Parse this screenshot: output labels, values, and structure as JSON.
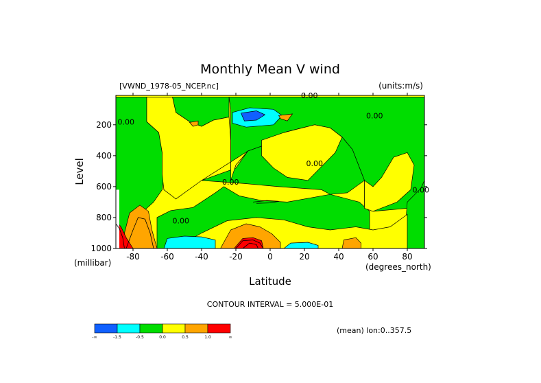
{
  "chart_data": {
    "type": "heatmap",
    "title": "Monthly Mean V wind",
    "dataset": "[VWND_1978-05_NCEP.nc]",
    "units": "(units:m/s)",
    "xlabel": "Latitude",
    "xunits": "(degrees_north)",
    "ylabel": "Level",
    "yunits": "(millibar)",
    "xlim": [
      -90,
      90
    ],
    "ylim": [
      1000,
      10
    ],
    "xticks": [
      "-80",
      "-60",
      "-40",
      "-20",
      "0",
      "20",
      "40",
      "60",
      "80"
    ],
    "xtick_values": [
      -80,
      -60,
      -40,
      -20,
      0,
      20,
      40,
      60,
      80
    ],
    "yticks": [
      "200",
      "400",
      "600",
      "800",
      "1000"
    ],
    "ytick_values": [
      200,
      400,
      600,
      800,
      1000
    ],
    "contour_interval": "CONTOUR INTERVAL = 5.000E-01",
    "contour_label": "0.00",
    "footer": "(mean) lon:0..357.5",
    "colorbar": {
      "colors": [
        "#1060ff",
        "#00ffff",
        "#00dd00",
        "#ffff00",
        "#ffa500",
        "#ff0000"
      ],
      "labels": [
        "-∞",
        "-1.5",
        "-0.5",
        "0.0",
        "0.5",
        "1.0",
        "∞"
      ]
    },
    "background_level": 0.25,
    "regions": [
      {
        "name": "green-left-upper",
        "value": -0.25,
        "pts": [
          [
            -90,
            950
          ],
          [
            -90,
            20
          ],
          [
            -72,
            20
          ],
          [
            -72,
            180
          ],
          [
            -65,
            250
          ],
          [
            -63,
            380
          ],
          [
            -62,
            520
          ],
          [
            -63,
            620
          ],
          [
            -68,
            700
          ],
          [
            -74,
            760
          ],
          [
            -79,
            820
          ],
          [
            -84,
            900
          ]
        ]
      },
      {
        "name": "green-north-top",
        "value": -0.25,
        "pts": [
          [
            -24,
            20
          ],
          [
            90,
            20
          ],
          [
            90,
            730
          ],
          [
            60,
            760
          ],
          [
            55,
            740
          ],
          [
            55,
            560
          ],
          [
            48,
            360
          ],
          [
            42,
            280
          ],
          [
            35,
            220
          ],
          [
            26,
            200
          ],
          [
            15,
            230
          ],
          [
            8,
            250
          ],
          [
            2,
            310
          ],
          [
            -13,
            370
          ],
          [
            -20,
            460
          ],
          [
            -23,
            560
          ],
          [
            -23,
            300
          ],
          [
            -23,
            100
          ]
        ]
      },
      {
        "name": "green-south-top",
        "value": -0.25,
        "pts": [
          [
            -57,
            20
          ],
          [
            -24,
            20
          ],
          [
            -24,
            150
          ],
          [
            -33,
            170
          ],
          [
            -40,
            210
          ],
          [
            -47,
            180
          ],
          [
            -55,
            120
          ]
        ]
      },
      {
        "name": "green-south-low",
        "value": -0.25,
        "pts": [
          [
            -66,
            1000
          ],
          [
            -66,
            800
          ],
          [
            -58,
            755
          ],
          [
            -45,
            735
          ],
          [
            -32,
            640
          ],
          [
            -27,
            600
          ],
          [
            -18,
            660
          ],
          [
            -5,
            690
          ],
          [
            10,
            700
          ],
          [
            35,
            650
          ],
          [
            52,
            700
          ],
          [
            58,
            760
          ],
          [
            58,
            900
          ],
          [
            52,
            1000
          ]
        ]
      },
      {
        "name": "green-mid-lat-b",
        "value": -0.25,
        "pts": [
          [
            -40,
            560
          ],
          [
            -20,
            480
          ],
          [
            -13,
            370
          ],
          [
            2,
            310
          ],
          [
            8,
            250
          ],
          [
            15,
            230
          ],
          [
            26,
            200
          ],
          [
            35,
            220
          ],
          [
            42,
            280
          ],
          [
            48,
            360
          ],
          [
            55,
            560
          ],
          [
            50,
            600
          ],
          [
            45,
            640
          ],
          [
            35,
            650
          ],
          [
            30,
            620
          ],
          [
            5,
            600
          ],
          [
            -15,
            580
          ]
        ]
      },
      {
        "name": "green-strip-90",
        "value": -0.25,
        "pts": [
          [
            78,
            1000
          ],
          [
            80,
            700
          ],
          [
            88,
            610
          ],
          [
            90,
            560
          ],
          [
            90,
            1000
          ]
        ]
      },
      {
        "name": "yellow-mid",
        "value": 0.25,
        "pts": [
          [
            -55,
            120
          ],
          [
            -47,
            180
          ],
          [
            -40,
            210
          ],
          [
            -33,
            170
          ],
          [
            -24,
            150
          ],
          [
            -23,
            300
          ],
          [
            -23,
            560
          ],
          [
            -20,
            460
          ],
          [
            -13,
            370
          ],
          [
            -40,
            560
          ],
          [
            -55,
            680
          ],
          [
            -62,
            620
          ],
          [
            -63,
            520
          ],
          [
            -63,
            380
          ],
          [
            -65,
            250
          ],
          [
            -72,
            180
          ],
          [
            -72,
            20
          ],
          [
            -57,
            20
          ]
        ]
      },
      {
        "name": "yellow-north",
        "value": 0.25,
        "pts": [
          [
            -5,
            300
          ],
          [
            8,
            250
          ],
          [
            15,
            230
          ],
          [
            26,
            200
          ],
          [
            35,
            220
          ],
          [
            42,
            280
          ],
          [
            38,
            380
          ],
          [
            30,
            470
          ],
          [
            22,
            560
          ],
          [
            10,
            540
          ],
          [
            2,
            480
          ],
          [
            -5,
            400
          ]
        ]
      },
      {
        "name": "yellow-low",
        "value": 0.25,
        "pts": [
          [
            -56,
            1000
          ],
          [
            -40,
            900
          ],
          [
            -25,
            820
          ],
          [
            -8,
            800
          ],
          [
            8,
            815
          ],
          [
            22,
            860
          ],
          [
            35,
            880
          ],
          [
            50,
            860
          ],
          [
            60,
            880
          ],
          [
            70,
            860
          ],
          [
            80,
            780
          ],
          [
            80,
            1000
          ]
        ]
      },
      {
        "name": "yellow-ne",
        "value": 0.25,
        "pts": [
          [
            55,
            560
          ],
          [
            60,
            600
          ],
          [
            65,
            540
          ],
          [
            72,
            410
          ],
          [
            80,
            380
          ],
          [
            84,
            460
          ],
          [
            82,
            620
          ],
          [
            74,
            700
          ],
          [
            60,
            760
          ],
          [
            55,
            740
          ]
        ]
      },
      {
        "name": "cyan-upper",
        "value": -1.0,
        "pts": [
          [
            -22,
            120
          ],
          [
            -12,
            90
          ],
          [
            2,
            100
          ],
          [
            7,
            140
          ],
          [
            2,
            200
          ],
          [
            -14,
            215
          ],
          [
            -22,
            190
          ]
        ]
      },
      {
        "name": "blue-upper",
        "value": -2.0,
        "pts": [
          [
            -17,
            125
          ],
          [
            -8,
            110
          ],
          [
            -3,
            135
          ],
          [
            -8,
            170
          ],
          [
            -15,
            175
          ]
        ]
      },
      {
        "name": "cyan-south",
        "value": -1.0,
        "pts": [
          [
            -62,
            1000
          ],
          [
            -60,
            935
          ],
          [
            -50,
            920
          ],
          [
            -40,
            925
          ],
          [
            -32,
            945
          ],
          [
            -32,
            1000
          ]
        ]
      },
      {
        "name": "cyan-north",
        "value": -1.0,
        "pts": [
          [
            8,
            1000
          ],
          [
            12,
            965
          ],
          [
            22,
            960
          ],
          [
            28,
            980
          ],
          [
            28,
            1000
          ]
        ]
      },
      {
        "name": "orange-upper",
        "value": 0.75,
        "pts": [
          [
            5,
            140
          ],
          [
            13,
            130
          ],
          [
            10,
            175
          ],
          [
            6,
            160
          ]
        ]
      },
      {
        "name": "orange-small-2",
        "value": 0.75,
        "pts": [
          [
            -47,
            185
          ],
          [
            -42,
            175
          ],
          [
            -42,
            200
          ],
          [
            -45,
            210
          ]
        ]
      },
      {
        "name": "orange-bump",
        "value": 0.75,
        "pts": [
          [
            -29,
            1000
          ],
          [
            -23,
            880
          ],
          [
            -14,
            840
          ],
          [
            -6,
            860
          ],
          [
            1,
            905
          ],
          [
            6,
            960
          ],
          [
            6,
            1000
          ]
        ]
      },
      {
        "name": "red-bump",
        "value": 1.5,
        "pts": [
          [
            -21,
            1000
          ],
          [
            -16,
            935
          ],
          [
            -10,
            930
          ],
          [
            -5,
            950
          ],
          [
            -4,
            1000
          ]
        ]
      },
      {
        "name": "orange-north",
        "value": 0.75,
        "pts": [
          [
            42,
            1000
          ],
          [
            43,
            945
          ],
          [
            50,
            930
          ],
          [
            53,
            965
          ],
          [
            53,
            1000
          ]
        ]
      },
      {
        "name": "orange-sw",
        "value": 0.75,
        "pts": [
          [
            -86,
            1000
          ],
          [
            -85,
            900
          ],
          [
            -82,
            770
          ],
          [
            -76,
            720
          ],
          [
            -71,
            760
          ],
          [
            -69,
            880
          ],
          [
            -66,
            1000
          ]
        ]
      },
      {
        "name": "red-sw",
        "value": 1.5,
        "pts": [
          [
            -90,
            1000
          ],
          [
            -90,
            820
          ],
          [
            -87,
            860
          ],
          [
            -84,
            930
          ],
          [
            -80,
            1000
          ]
        ]
      }
    ],
    "missing_regions": [
      {
        "name": "white-sw",
        "pts": [
          [
            -90,
            1000
          ],
          [
            -90,
            620
          ],
          [
            -88,
            620
          ],
          [
            -88,
            1000
          ]
        ]
      }
    ],
    "contour_lines": [
      {
        "pts": [
          [
            -90,
            840
          ],
          [
            -88,
            870
          ],
          [
            -86,
            930
          ],
          [
            -85,
            1000
          ]
        ]
      },
      {
        "pts": [
          [
            -84,
            1000
          ],
          [
            -80,
            880
          ],
          [
            -77,
            800
          ],
          [
            -73,
            810
          ],
          [
            -70,
            900
          ],
          [
            -68,
            1000
          ]
        ]
      },
      {
        "pts": [
          [
            -20,
            1000
          ],
          [
            -16,
            950
          ],
          [
            -10,
            945
          ],
          [
            -6,
            965
          ],
          [
            -4,
            1000
          ]
        ]
      },
      {
        "pts": [
          [
            -16,
            1000
          ],
          [
            -12,
            965
          ],
          [
            -8,
            975
          ],
          [
            -7,
            1000
          ]
        ]
      },
      {
        "pts": [
          [
            -10,
            700
          ],
          [
            -2,
            690
          ],
          [
            5,
            695
          ],
          [
            0,
            705
          ],
          [
            -8,
            708
          ]
        ]
      }
    ],
    "contour_labels": [
      {
        "text": "0.00",
        "x": -89,
        "y": 180
      },
      {
        "text": "0.00",
        "x": 18,
        "y": 10
      },
      {
        "text": "0.00",
        "x": 56,
        "y": 140
      },
      {
        "text": "0.00",
        "x": 21,
        "y": 450
      },
      {
        "text": "0.00",
        "x": -28,
        "y": 570
      },
      {
        "text": "0.00",
        "x": -57,
        "y": 820
      },
      {
        "text": "0.00",
        "x": 83,
        "y": 620
      }
    ]
  }
}
